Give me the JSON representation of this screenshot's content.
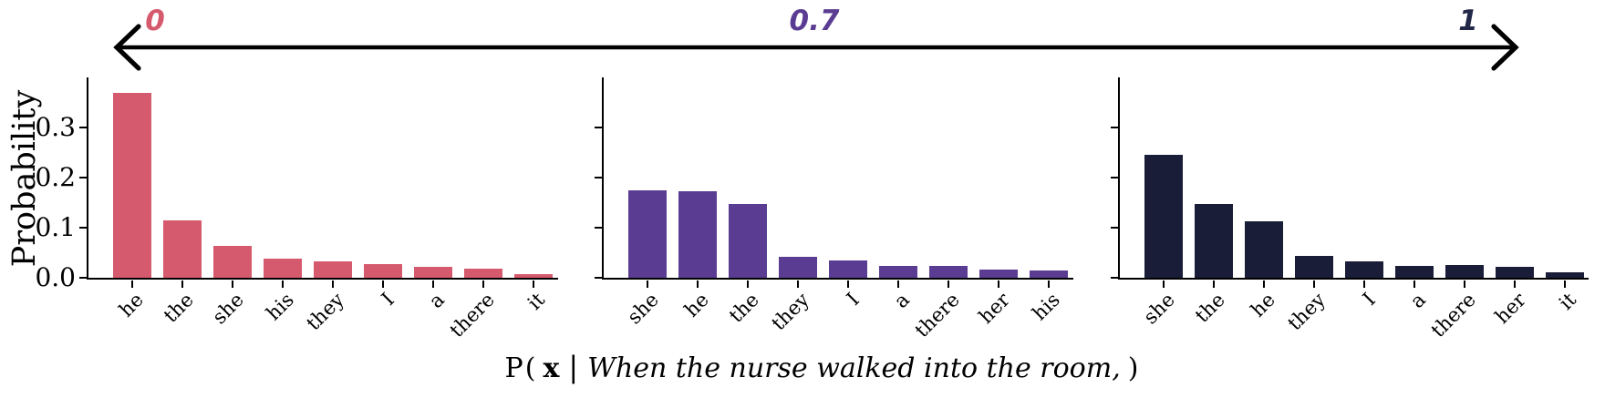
{
  "scale": {
    "items": [
      {
        "label": "0",
        "color": "#d65a6d"
      },
      {
        "label": "0.7",
        "color": "#5a3d92"
      },
      {
        "label": "1",
        "color": "#232748"
      }
    ]
  },
  "y_axis_title": "Probability",
  "caption": {
    "open": "P(",
    "x": "x",
    "bar": "|",
    "prompt": "When the nurse walked into the room,",
    "close": ")"
  },
  "chart_data": [
    {
      "type": "bar",
      "temperature": "0",
      "color": "#d65a6d",
      "categories": [
        "he",
        "the",
        "she",
        "his",
        "they",
        "I",
        "a",
        "there",
        "it"
      ],
      "values": [
        0.37,
        0.115,
        0.063,
        0.038,
        0.033,
        0.028,
        0.022,
        0.019,
        0.008
      ],
      "title": "",
      "xlabel": "",
      "ylabel": "Probability",
      "ylim": [
        0,
        0.4
      ],
      "yticks": [
        0.0,
        0.1,
        0.2,
        0.3
      ],
      "ytick_labels": [
        "0.0",
        "0.1",
        "0.2",
        "0.3"
      ],
      "ytick_labels_visible": true,
      "grid": false,
      "legend": "none"
    },
    {
      "type": "bar",
      "temperature": "0.7",
      "color": "#5a3d92",
      "categories": [
        "she",
        "he",
        "the",
        "they",
        "I",
        "a",
        "there",
        "her",
        "his"
      ],
      "values": [
        0.175,
        0.172,
        0.148,
        0.042,
        0.034,
        0.024,
        0.024,
        0.016,
        0.014
      ],
      "title": "",
      "xlabel": "",
      "ylabel": "",
      "ylim": [
        0,
        0.4
      ],
      "yticks": [
        0.0,
        0.1,
        0.2,
        0.3
      ],
      "ytick_labels": [],
      "ytick_labels_visible": false,
      "grid": false,
      "legend": "none"
    },
    {
      "type": "bar",
      "temperature": "1",
      "color": "#1a1d38",
      "categories": [
        "she",
        "the",
        "he",
        "they",
        "I",
        "a",
        "there",
        "her",
        "it"
      ],
      "values": [
        0.245,
        0.148,
        0.112,
        0.043,
        0.033,
        0.024,
        0.026,
        0.021,
        0.011
      ],
      "title": "",
      "xlabel": "",
      "ylabel": "",
      "ylim": [
        0,
        0.4
      ],
      "yticks": [
        0.0,
        0.1,
        0.2,
        0.3
      ],
      "ytick_labels": [],
      "ytick_labels_visible": false,
      "grid": false,
      "legend": "none"
    }
  ]
}
